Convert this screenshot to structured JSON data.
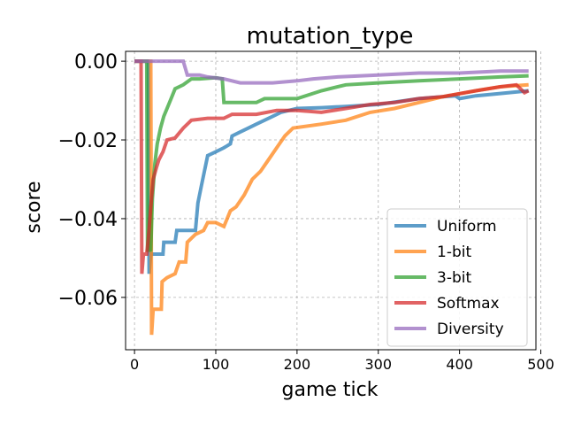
{
  "chart_data": {
    "type": "line",
    "title": "mutation_type",
    "xlabel": "game tick",
    "ylabel": "score",
    "xlim": [
      -11,
      494
    ],
    "ylim": [
      -0.0733,
      0.0025
    ],
    "xticks": [
      0,
      100,
      200,
      300,
      400,
      500
    ],
    "xtick_labels": [
      "0",
      "100",
      "200",
      "300",
      "400",
      "500"
    ],
    "yticks": [
      0.0,
      -0.02,
      -0.04,
      -0.06
    ],
    "ytick_labels": [
      "0.00",
      "−0.02",
      "−0.04",
      "−0.06"
    ],
    "grid": true,
    "legend_position": "lower-right",
    "series": [
      {
        "name": "Uniform",
        "color": "#1f77b4",
        "points": [
          [
            0,
            0
          ],
          [
            17,
            0
          ],
          [
            18,
            -0.054
          ],
          [
            20,
            -0.049
          ],
          [
            35,
            -0.049
          ],
          [
            36,
            -0.046
          ],
          [
            50,
            -0.046
          ],
          [
            52,
            -0.043
          ],
          [
            75,
            -0.043
          ],
          [
            78,
            -0.036
          ],
          [
            82,
            -0.032
          ],
          [
            86,
            -0.028
          ],
          [
            90,
            -0.024
          ],
          [
            100,
            -0.023
          ],
          [
            110,
            -0.022
          ],
          [
            118,
            -0.021
          ],
          [
            120,
            -0.019
          ],
          [
            130,
            -0.018
          ],
          [
            140,
            -0.017
          ],
          [
            150,
            -0.016
          ],
          [
            160,
            -0.015
          ],
          [
            170,
            -0.014
          ],
          [
            180,
            -0.013
          ],
          [
            200,
            -0.012
          ],
          [
            230,
            -0.0118
          ],
          [
            260,
            -0.0115
          ],
          [
            300,
            -0.011
          ],
          [
            350,
            -0.0095
          ],
          [
            395,
            -0.0088
          ],
          [
            400,
            -0.0095
          ],
          [
            420,
            -0.0088
          ],
          [
            450,
            -0.0082
          ],
          [
            485,
            -0.0075
          ]
        ]
      },
      {
        "name": "1-bit",
        "color": "#ff7f0e",
        "points": [
          [
            0,
            0
          ],
          [
            20,
            0
          ],
          [
            21,
            -0.0695
          ],
          [
            23,
            -0.063
          ],
          [
            33,
            -0.063
          ],
          [
            34,
            -0.056
          ],
          [
            40,
            -0.055
          ],
          [
            50,
            -0.054
          ],
          [
            55,
            -0.051
          ],
          [
            63,
            -0.051
          ],
          [
            65,
            -0.046
          ],
          [
            75,
            -0.044
          ],
          [
            85,
            -0.043
          ],
          [
            90,
            -0.041
          ],
          [
            100,
            -0.041
          ],
          [
            110,
            -0.042
          ],
          [
            118,
            -0.038
          ],
          [
            125,
            -0.037
          ],
          [
            135,
            -0.034
          ],
          [
            145,
            -0.03
          ],
          [
            155,
            -0.028
          ],
          [
            165,
            -0.025
          ],
          [
            175,
            -0.022
          ],
          [
            185,
            -0.019
          ],
          [
            195,
            -0.017
          ],
          [
            230,
            -0.016
          ],
          [
            260,
            -0.015
          ],
          [
            290,
            -0.013
          ],
          [
            320,
            -0.012
          ],
          [
            350,
            -0.0105
          ],
          [
            380,
            -0.009
          ],
          [
            420,
            -0.0075
          ],
          [
            450,
            -0.0065
          ],
          [
            485,
            -0.006
          ]
        ]
      },
      {
        "name": "3-bit",
        "color": "#2ca02c",
        "points": [
          [
            0,
            0
          ],
          [
            15,
            0
          ],
          [
            16,
            -0.048
          ],
          [
            20,
            -0.048
          ],
          [
            22,
            -0.035
          ],
          [
            25,
            -0.026
          ],
          [
            28,
            -0.021
          ],
          [
            32,
            -0.017
          ],
          [
            36,
            -0.014
          ],
          [
            40,
            -0.012
          ],
          [
            46,
            -0.009
          ],
          [
            50,
            -0.007
          ],
          [
            60,
            -0.006
          ],
          [
            70,
            -0.0045
          ],
          [
            80,
            -0.0045
          ],
          [
            100,
            -0.0042
          ],
          [
            108,
            -0.0045
          ],
          [
            110,
            -0.0105
          ],
          [
            140,
            -0.0105
          ],
          [
            150,
            -0.0105
          ],
          [
            160,
            -0.0095
          ],
          [
            200,
            -0.0095
          ],
          [
            230,
            -0.0075
          ],
          [
            260,
            -0.006
          ],
          [
            300,
            -0.0055
          ],
          [
            350,
            -0.005
          ],
          [
            400,
            -0.0045
          ],
          [
            450,
            -0.004
          ],
          [
            485,
            -0.0037
          ]
        ]
      },
      {
        "name": "Softmax",
        "color": "#d62728",
        "points": [
          [
            0,
            0
          ],
          [
            8,
            0
          ],
          [
            9,
            -0.054
          ],
          [
            11,
            -0.049
          ],
          [
            15,
            -0.049
          ],
          [
            17,
            -0.045
          ],
          [
            20,
            -0.037
          ],
          [
            23,
            -0.03
          ],
          [
            27,
            -0.027
          ],
          [
            30,
            -0.025
          ],
          [
            35,
            -0.023
          ],
          [
            40,
            -0.02
          ],
          [
            50,
            -0.0195
          ],
          [
            60,
            -0.017
          ],
          [
            70,
            -0.015
          ],
          [
            90,
            -0.0145
          ],
          [
            110,
            -0.0145
          ],
          [
            120,
            -0.0135
          ],
          [
            150,
            -0.0135
          ],
          [
            175,
            -0.0125
          ],
          [
            200,
            -0.0125
          ],
          [
            230,
            -0.013
          ],
          [
            260,
            -0.012
          ],
          [
            290,
            -0.011
          ],
          [
            320,
            -0.0105
          ],
          [
            350,
            -0.0095
          ],
          [
            380,
            -0.009
          ],
          [
            420,
            -0.0075
          ],
          [
            450,
            -0.0065
          ],
          [
            470,
            -0.006
          ],
          [
            480,
            -0.008
          ],
          [
            485,
            -0.0075
          ]
        ]
      },
      {
        "name": "Diversity",
        "color": "#9467bd",
        "points": [
          [
            0,
            0
          ],
          [
            60,
            0
          ],
          [
            65,
            -0.0035
          ],
          [
            80,
            -0.0035
          ],
          [
            90,
            -0.004
          ],
          [
            110,
            -0.0045
          ],
          [
            130,
            -0.0055
          ],
          [
            170,
            -0.0055
          ],
          [
            200,
            -0.005
          ],
          [
            220,
            -0.0045
          ],
          [
            250,
            -0.004
          ],
          [
            300,
            -0.0035
          ],
          [
            350,
            -0.003
          ],
          [
            400,
            -0.003
          ],
          [
            450,
            -0.0025
          ],
          [
            485,
            -0.0025
          ]
        ]
      }
    ]
  }
}
